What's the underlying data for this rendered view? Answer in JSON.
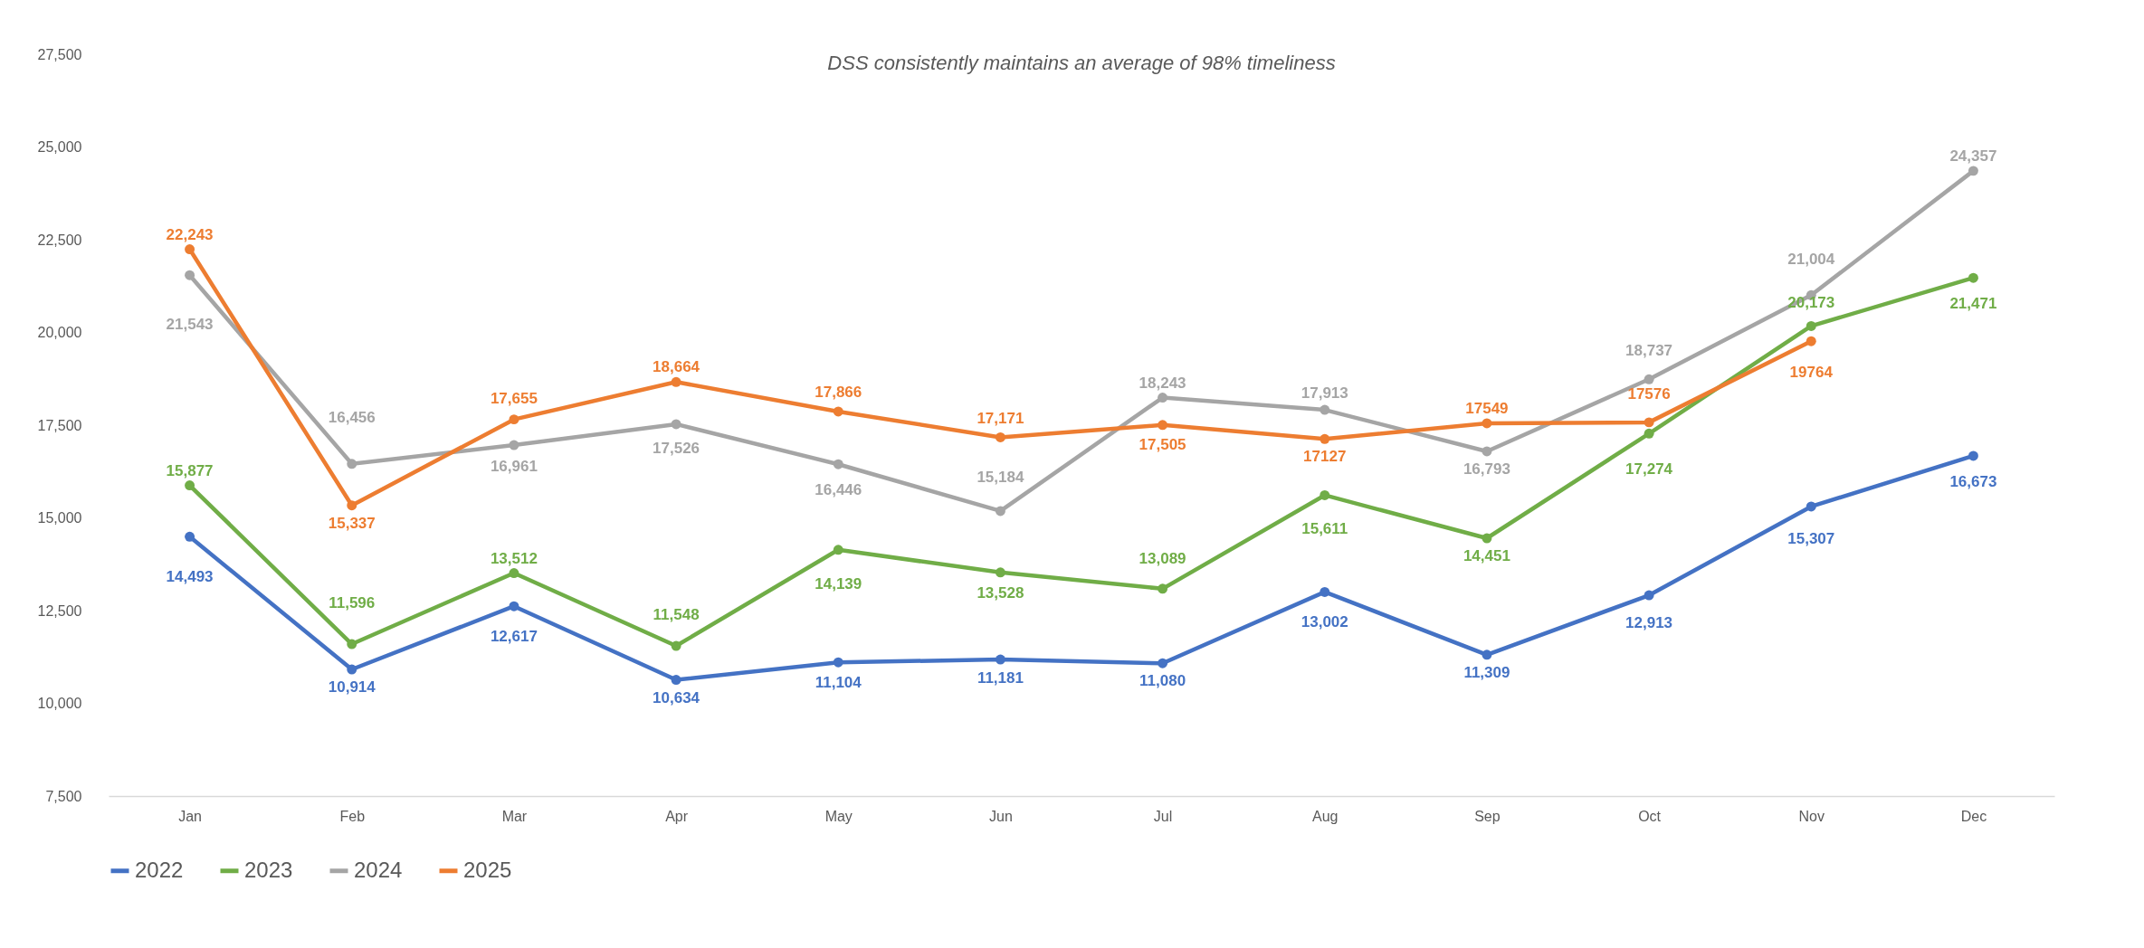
{
  "chart_data": {
    "type": "line",
    "title": "DSS consistently maintains an average of 98% timeliness",
    "categories": [
      "Jan",
      "Feb",
      "Mar",
      "Apr",
      "May",
      "Jun",
      "Jul",
      "Aug",
      "Sep",
      "Oct",
      "Nov",
      "Dec"
    ],
    "series": [
      {
        "name": "2022",
        "color": "#4472c4",
        "values": [
          14493,
          10914,
          12617,
          10634,
          11104,
          11181,
          11080,
          13002,
          11309,
          12913,
          15307,
          16673
        ],
        "value_labels": [
          "14,493",
          "10,914",
          "12,617",
          "10,634",
          "11,104",
          "11,181",
          "11,080",
          "13,002",
          "11,309",
          "12,913",
          "15,307",
          "16,673"
        ]
      },
      {
        "name": "2023",
        "color": "#70ad47",
        "values": [
          15877,
          11596,
          13512,
          11548,
          14139,
          13528,
          13089,
          15611,
          14451,
          17274,
          20173,
          21471
        ],
        "value_labels": [
          "15,877",
          "11,596",
          "13,512",
          "11,548",
          "14,139",
          "13,528",
          "13,089",
          "15,611",
          "14,451",
          "17,274",
          "20,173",
          "21,471"
        ]
      },
      {
        "name": "2024",
        "color": "#a5a5a5",
        "values": [
          21543,
          16456,
          16961,
          17526,
          16446,
          15184,
          18243,
          17913,
          16793,
          18737,
          21004,
          24357
        ],
        "value_labels": [
          "21,543",
          "16,456",
          "16,961",
          "17,526",
          "16,446",
          "15,184",
          "18,243",
          "17,913",
          "16,793",
          "18,737",
          "21,004",
          "24,357"
        ]
      },
      {
        "name": "2025",
        "color": "#ed7d31",
        "values": [
          22243,
          15337,
          17655,
          18664,
          17866,
          17171,
          17505,
          17127,
          17549,
          17576,
          19764,
          null
        ],
        "value_labels": [
          "22,243",
          "15,337",
          "17,655",
          "18,664",
          "17,866",
          "17,171",
          "17,505",
          "17127",
          "17549",
          "17576",
          "19764",
          null
        ]
      }
    ],
    "ylim": [
      7500,
      27500
    ],
    "yticks": [
      {
        "value": 7500,
        "label": "7,500"
      },
      {
        "value": 10000,
        "label": "10,000"
      },
      {
        "value": 12500,
        "label": "12,500"
      },
      {
        "value": 15000,
        "label": "15,000"
      },
      {
        "value": 17500,
        "label": "17,500"
      },
      {
        "value": 20000,
        "label": "20,000"
      },
      {
        "value": 22500,
        "label": "22,500"
      },
      {
        "value": 25000,
        "label": "25,000"
      },
      {
        "value": 27500,
        "label": "27,500"
      }
    ],
    "grid": false,
    "legend": "bottom",
    "marker": "circle",
    "line_style": "solid"
  }
}
